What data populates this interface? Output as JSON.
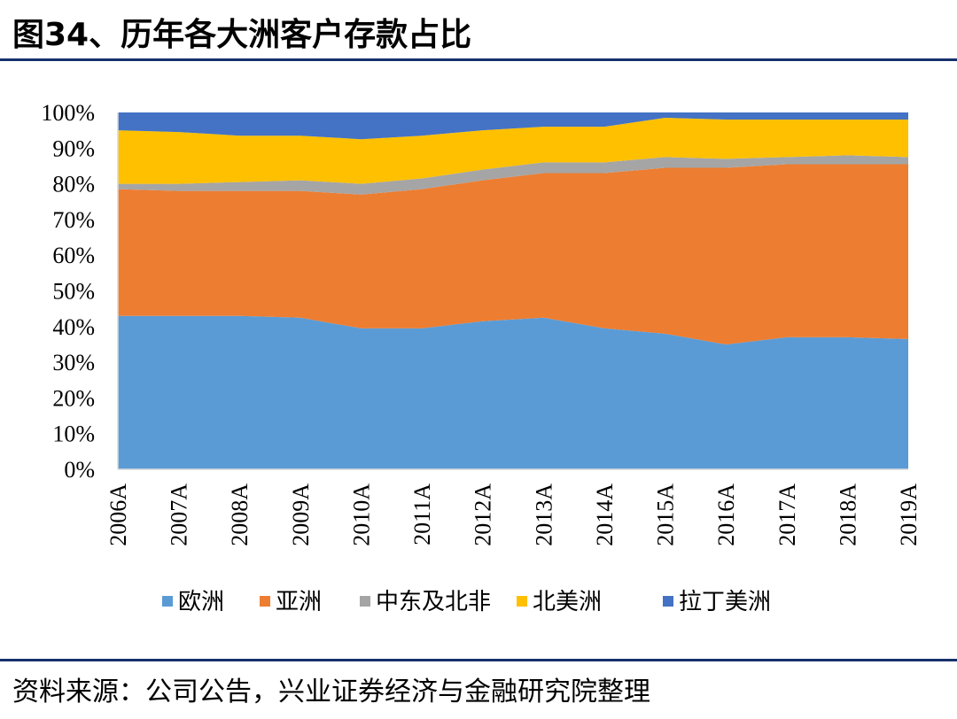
{
  "title": "图34、历年各大洲客户存款占比",
  "source": "资料来源：公司公告，兴业证券经济与金融研究院整理",
  "chart_data": {
    "type": "area",
    "stacked": true,
    "title": "图34、历年各大洲客户存款占比",
    "xlabel": "",
    "ylabel": "",
    "ylim": [
      0,
      100
    ],
    "y_ticks": [
      "0%",
      "10%",
      "20%",
      "30%",
      "40%",
      "50%",
      "60%",
      "70%",
      "80%",
      "90%",
      "100%"
    ],
    "categories": [
      "2006A",
      "2007A",
      "2008A",
      "2009A",
      "2010A",
      "2011A",
      "2012A",
      "2013A",
      "2014A",
      "2015A",
      "2016A",
      "2017A",
      "2018A",
      "2019A"
    ],
    "legend_position": "bottom",
    "series": [
      {
        "name": "欧洲",
        "color": "#5b9bd5",
        "values": [
          43,
          43,
          43,
          42.5,
          39.5,
          39.5,
          41.5,
          42.5,
          39.5,
          38,
          35,
          37,
          37,
          36.5
        ]
      },
      {
        "name": "亚洲",
        "color": "#ed7d31",
        "values": [
          35.5,
          35,
          35,
          35.5,
          37.5,
          39,
          39.5,
          40.5,
          43.5,
          46.5,
          49.5,
          48.5,
          48.5,
          49
        ]
      },
      {
        "name": "中东及北非",
        "color": "#a5a5a5",
        "values": [
          1.5,
          2,
          2.5,
          3,
          3,
          3,
          3,
          3,
          3,
          3,
          2.5,
          2,
          2.5,
          2
        ]
      },
      {
        "name": "北美洲",
        "color": "#ffc000",
        "values": [
          15,
          14.5,
          13,
          12.5,
          12.5,
          12,
          11,
          10,
          10,
          11,
          11,
          10.5,
          10,
          10.5
        ]
      },
      {
        "name": "拉丁美洲",
        "color": "#4472c4",
        "values": [
          5,
          5.5,
          6.5,
          6.5,
          7.5,
          6.5,
          5,
          4,
          4,
          1.5,
          2,
          2,
          2,
          2
        ]
      }
    ]
  }
}
